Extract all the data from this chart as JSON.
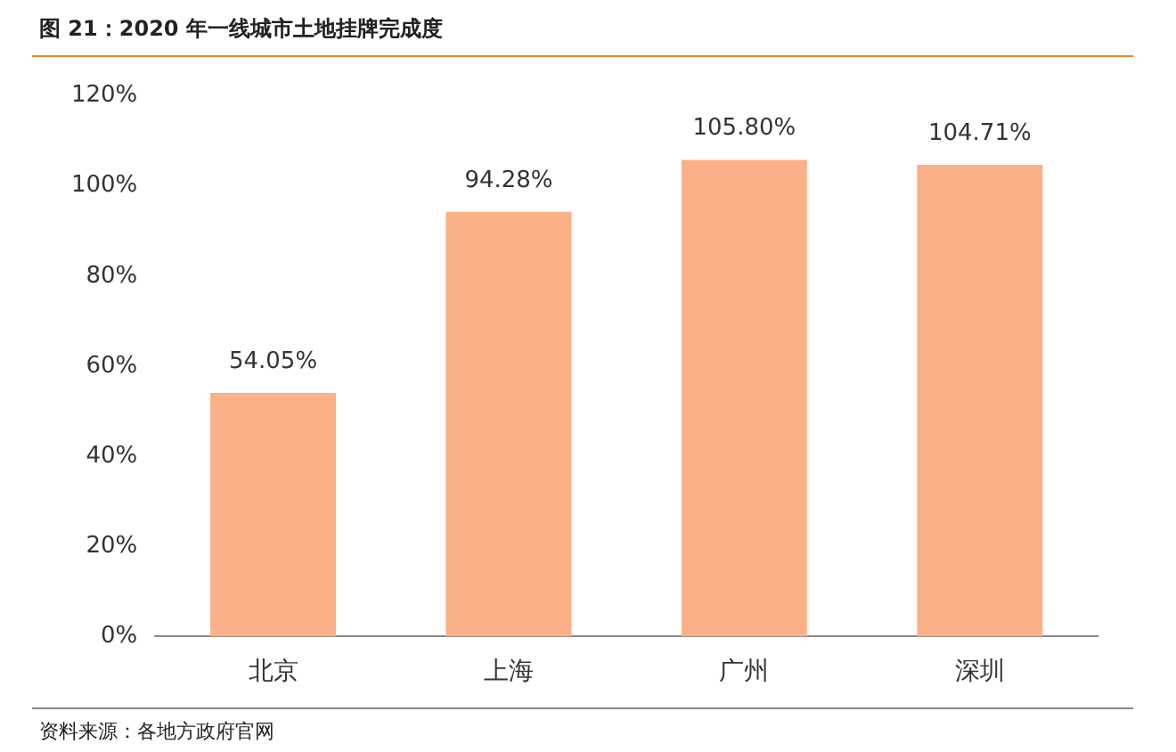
{
  "chart_data": {
    "type": "bar",
    "title": "图 21：2020 年一线城市土地挂牌完成度",
    "categories": [
      "北京",
      "上海",
      "广州",
      "深圳"
    ],
    "values": [
      54.05,
      94.28,
      105.8,
      104.71
    ],
    "value_labels": [
      "54.05%",
      "94.28%",
      "105.80%",
      "104.71%"
    ],
    "color": "#fbb088",
    "ylim": [
      0,
      120
    ],
    "yticks": [
      {
        "value": 0,
        "label": "0%"
      },
      {
        "value": 20,
        "label": "20%"
      },
      {
        "value": 40,
        "label": "40%"
      },
      {
        "value": 60,
        "label": "60%"
      },
      {
        "value": 80,
        "label": "80%"
      },
      {
        "value": 100,
        "label": "100%"
      },
      {
        "value": 120,
        "label": "120%"
      }
    ],
    "grid": false,
    "annotations": [
      "资料来源：各地方政府官网"
    ]
  }
}
